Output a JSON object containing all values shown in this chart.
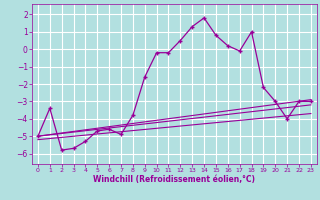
{
  "title": "",
  "xlabel": "Windchill (Refroidissement éolien,°C)",
  "background_color": "#b2e0e0",
  "grid_color": "#ffffff",
  "line_color": "#990099",
  "xlim": [
    -0.5,
    23.5
  ],
  "ylim": [
    -6.6,
    2.6
  ],
  "yticks": [
    -6,
    -5,
    -4,
    -3,
    -2,
    -1,
    0,
    1,
    2
  ],
  "xticks": [
    0,
    1,
    2,
    3,
    4,
    5,
    6,
    7,
    8,
    9,
    10,
    11,
    12,
    13,
    14,
    15,
    16,
    17,
    18,
    19,
    20,
    21,
    22,
    23
  ],
  "curve1_x": [
    0,
    1,
    2,
    3,
    4,
    5,
    6,
    7,
    8,
    9,
    10,
    11,
    12,
    13,
    14,
    15,
    16,
    17,
    18,
    19,
    20,
    21,
    22,
    23
  ],
  "curve1_y": [
    -5.0,
    -3.4,
    -5.8,
    -5.7,
    -5.3,
    -4.7,
    -4.6,
    -4.9,
    -3.8,
    -1.6,
    -0.2,
    -0.2,
    0.5,
    1.3,
    1.8,
    0.8,
    0.2,
    -0.1,
    1.0,
    -2.2,
    -3.0,
    -4.0,
    -3.0,
    -3.0
  ],
  "line1_x": [
    0,
    23
  ],
  "line1_y": [
    -5.0,
    -2.9
  ],
  "line2_x": [
    0,
    23
  ],
  "line2_y": [
    -5.0,
    -3.2
  ],
  "line3_x": [
    0,
    23
  ],
  "line3_y": [
    -5.2,
    -3.7
  ]
}
